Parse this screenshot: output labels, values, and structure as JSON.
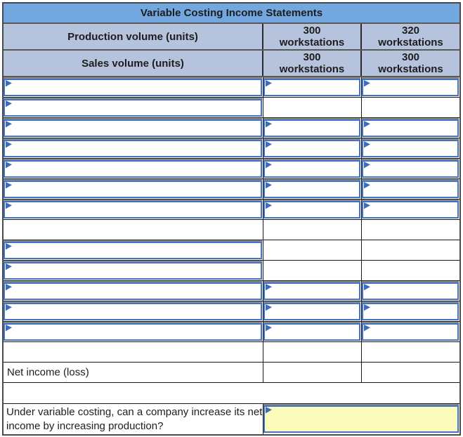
{
  "title": "Variable Costing Income Statements",
  "colors": {
    "title_bg": "#73A7DF",
    "header_bg": "#B6C3DD",
    "input_border": "#4472C4",
    "flag_color": "#3A6DBD",
    "answer_bg": "#FBFBBB"
  },
  "volume_headers": {
    "production": {
      "label": "Production volume (units)",
      "col1_line1": "300",
      "col1_line2": "workstations",
      "col2_line1": "320",
      "col2_line2": "workstations"
    },
    "sales": {
      "label": "Sales volume (units)",
      "col1_line1": "300",
      "col1_line2": "workstations",
      "col2_line1": "300",
      "col2_line2": "workstations"
    }
  },
  "body_rows": [
    {
      "name": "statement-row-1",
      "label": "",
      "label_input": true,
      "col1_input": true,
      "col2_input": true,
      "col1": "",
      "col2": ""
    },
    {
      "name": "statement-row-2",
      "label": "",
      "label_input": true,
      "col1_input": false,
      "col2_input": false,
      "col1": "",
      "col2": ""
    },
    {
      "name": "statement-row-3",
      "label": "",
      "label_input": true,
      "col1_input": true,
      "col2_input": true,
      "col1": "",
      "col2": ""
    },
    {
      "name": "statement-row-4",
      "label": "",
      "label_input": true,
      "col1_input": true,
      "col2_input": true,
      "col1": "",
      "col2": ""
    },
    {
      "name": "statement-row-5",
      "label": "",
      "label_input": true,
      "col1_input": true,
      "col2_input": true,
      "col1": "",
      "col2": ""
    },
    {
      "name": "statement-row-6",
      "label": "",
      "label_input": true,
      "col1_input": true,
      "col2_input": true,
      "col1": "",
      "col2": ""
    },
    {
      "name": "statement-row-7",
      "label": "",
      "label_input": true,
      "col1_input": true,
      "col2_input": true,
      "col1": "",
      "col2": ""
    },
    {
      "name": "statement-row-8",
      "label": "",
      "label_input": false,
      "col1_input": false,
      "col2_input": false,
      "col1": "",
      "col2": ""
    },
    {
      "name": "statement-row-9",
      "label": "",
      "label_input": true,
      "col1_input": false,
      "col2_input": false,
      "col1": "",
      "col2": ""
    },
    {
      "name": "statement-row-10",
      "label": "",
      "label_input": true,
      "col1_input": false,
      "col2_input": false,
      "col1": "",
      "col2": ""
    },
    {
      "name": "statement-row-11",
      "label": "",
      "label_input": true,
      "col1_input": true,
      "col2_input": true,
      "col1": "",
      "col2": ""
    },
    {
      "name": "statement-row-12",
      "label": "",
      "label_input": true,
      "col1_input": true,
      "col2_input": true,
      "col1": "",
      "col2": ""
    },
    {
      "name": "statement-row-13",
      "label": "",
      "label_input": true,
      "col1_input": true,
      "col2_input": true,
      "col1": "",
      "col2": ""
    },
    {
      "name": "statement-row-14",
      "label": "",
      "label_input": false,
      "col1_input": false,
      "col2_input": false,
      "col1": "",
      "col2": ""
    },
    {
      "name": "net-income-row",
      "label": "Net income (loss)",
      "label_input": false,
      "col1_input": false,
      "col2_input": false,
      "col1": "",
      "col2": ""
    }
  ],
  "question": {
    "text": "Under variable costing, can a company increase its net income by increasing production?",
    "answer_value": ""
  }
}
